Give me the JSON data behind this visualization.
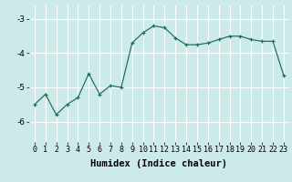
{
  "x": [
    0,
    1,
    2,
    3,
    4,
    5,
    6,
    7,
    8,
    9,
    10,
    11,
    12,
    13,
    14,
    15,
    16,
    17,
    18,
    19,
    20,
    21,
    22,
    23
  ],
  "y": [
    -5.5,
    -5.2,
    -5.8,
    -5.5,
    -5.3,
    -4.6,
    -5.2,
    -4.95,
    -5.0,
    -3.7,
    -3.4,
    -3.2,
    -3.25,
    -3.55,
    -3.75,
    -3.75,
    -3.7,
    -3.6,
    -3.5,
    -3.5,
    -3.6,
    -3.65,
    -3.65,
    -4.65
  ],
  "xlabel": "Humidex (Indice chaleur)",
  "xlim": [
    -0.5,
    23.5
  ],
  "ylim": [
    -6.6,
    -2.6
  ],
  "yticks": [
    -6,
    -5,
    -4,
    -3
  ],
  "xticks": [
    0,
    1,
    2,
    3,
    4,
    5,
    6,
    7,
    8,
    9,
    10,
    11,
    12,
    13,
    14,
    15,
    16,
    17,
    18,
    19,
    20,
    21,
    22,
    23
  ],
  "line_color": "#1a6b5a",
  "marker": "+",
  "bg_color": "#cceaea",
  "grid_color": "#ffffff",
  "tick_fontsize": 6.0,
  "xlabel_fontsize": 7.5
}
